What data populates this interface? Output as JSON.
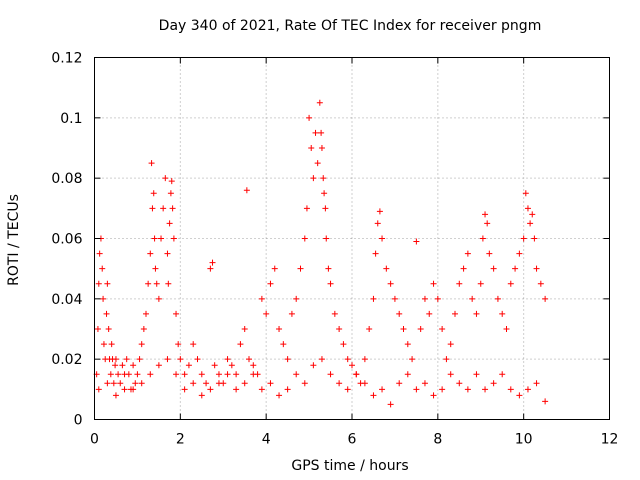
{
  "chart_data": {
    "type": "scatter",
    "title": "Day 340 of 2021, Rate Of TEC Index for receiver pngm",
    "xlabel": "GPS time / hours",
    "ylabel": "ROTI / TECUs",
    "xlim": [
      0,
      12
    ],
    "ylim": [
      0,
      0.12
    ],
    "xticks": [
      0,
      2,
      4,
      6,
      8,
      10,
      12
    ],
    "xtick_labels": [
      "0",
      "2",
      "4",
      "6",
      "8",
      "10",
      "12"
    ],
    "yticks": [
      0,
      0.02,
      0.04,
      0.06,
      0.08,
      0.1,
      0.12
    ],
    "ytick_labels": [
      "0",
      "0.02",
      "0.04",
      "0.06",
      "0.08",
      "0.1",
      "0.12"
    ],
    "grid": true,
    "marker": "plus",
    "marker_color": "#ff0000",
    "series": [
      {
        "name": "ROTI",
        "x": [
          0.05,
          0.08,
          0.1,
          0.12,
          0.15,
          0.18,
          0.2,
          0.22,
          0.25,
          0.28,
          0.3,
          0.33,
          0.35,
          0.38,
          0.4,
          0.42,
          0.45,
          0.48,
          0.5,
          0.55,
          0.6,
          0.65,
          0.7,
          0.75,
          0.8,
          0.85,
          0.9,
          0.95,
          1.0,
          1.05,
          1.1,
          1.15,
          1.2,
          1.25,
          1.3,
          1.33,
          1.35,
          1.38,
          1.4,
          1.42,
          1.45,
          1.5,
          1.55,
          1.6,
          1.65,
          1.7,
          1.72,
          1.75,
          1.78,
          1.8,
          1.82,
          1.85,
          1.9,
          1.95,
          2.0,
          2.1,
          2.2,
          2.3,
          2.4,
          2.5,
          2.6,
          2.7,
          2.75,
          2.8,
          2.9,
          3.0,
          3.1,
          3.2,
          3.3,
          3.4,
          3.5,
          3.55,
          3.6,
          3.7,
          3.8,
          3.9,
          4.0,
          4.1,
          4.2,
          4.3,
          4.4,
          4.5,
          4.6,
          4.7,
          4.8,
          4.9,
          4.95,
          5.0,
          5.05,
          5.1,
          5.15,
          5.2,
          5.25,
          5.28,
          5.3,
          5.33,
          5.35,
          5.38,
          5.4,
          5.45,
          5.5,
          5.6,
          5.7,
          5.8,
          5.9,
          6.0,
          6.1,
          6.2,
          6.3,
          6.4,
          6.5,
          6.55,
          6.6,
          6.65,
          6.7,
          6.8,
          6.9,
          7.0,
          7.1,
          7.2,
          7.3,
          7.4,
          7.5,
          7.6,
          7.7,
          7.8,
          7.9,
          8.0,
          8.1,
          8.2,
          8.3,
          8.4,
          8.5,
          8.6,
          8.7,
          8.8,
          8.9,
          9.0,
          9.05,
          9.1,
          9.15,
          9.2,
          9.3,
          9.4,
          9.5,
          9.6,
          9.7,
          9.8,
          9.9,
          10.0,
          10.05,
          10.1,
          10.15,
          10.2,
          10.25,
          10.3,
          10.4,
          10.5,
          0.1,
          0.3,
          0.5,
          0.7,
          0.9,
          1.1,
          1.3,
          1.5,
          1.7,
          1.9,
          2.1,
          2.3,
          2.5,
          2.7,
          2.9,
          3.1,
          3.3,
          3.5,
          3.7,
          3.9,
          4.1,
          4.3,
          4.5,
          4.7,
          4.9,
          5.1,
          5.3,
          5.5,
          5.7,
          5.9,
          6.1,
          6.3,
          6.5,
          6.7,
          6.9,
          7.1,
          7.3,
          7.5,
          7.7,
          7.9,
          8.1,
          8.3,
          8.5,
          8.7,
          8.9,
          9.1,
          9.3,
          9.5,
          9.7,
          9.9,
          10.1,
          10.3,
          10.5
        ],
        "y": [
          0.015,
          0.03,
          0.045,
          0.055,
          0.06,
          0.05,
          0.04,
          0.025,
          0.02,
          0.035,
          0.045,
          0.03,
          0.02,
          0.015,
          0.025,
          0.02,
          0.012,
          0.018,
          0.02,
          0.015,
          0.012,
          0.018,
          0.01,
          0.02,
          0.015,
          0.01,
          0.018,
          0.012,
          0.015,
          0.02,
          0.025,
          0.03,
          0.035,
          0.045,
          0.055,
          0.085,
          0.07,
          0.075,
          0.06,
          0.05,
          0.045,
          0.04,
          0.06,
          0.07,
          0.08,
          0.055,
          0.045,
          0.065,
          0.075,
          0.079,
          0.07,
          0.06,
          0.035,
          0.025,
          0.02,
          0.015,
          0.018,
          0.025,
          0.02,
          0.015,
          0.012,
          0.05,
          0.052,
          0.018,
          0.015,
          0.012,
          0.02,
          0.018,
          0.015,
          0.025,
          0.03,
          0.076,
          0.02,
          0.018,
          0.015,
          0.04,
          0.035,
          0.045,
          0.05,
          0.03,
          0.025,
          0.02,
          0.035,
          0.04,
          0.05,
          0.06,
          0.07,
          0.1,
          0.09,
          0.08,
          0.095,
          0.085,
          0.105,
          0.095,
          0.09,
          0.08,
          0.075,
          0.07,
          0.06,
          0.05,
          0.045,
          0.035,
          0.03,
          0.025,
          0.02,
          0.018,
          0.015,
          0.012,
          0.02,
          0.03,
          0.04,
          0.055,
          0.065,
          0.069,
          0.06,
          0.05,
          0.045,
          0.04,
          0.035,
          0.03,
          0.025,
          0.02,
          0.059,
          0.03,
          0.04,
          0.035,
          0.045,
          0.04,
          0.03,
          0.02,
          0.025,
          0.035,
          0.045,
          0.05,
          0.055,
          0.04,
          0.035,
          0.045,
          0.06,
          0.068,
          0.065,
          0.055,
          0.05,
          0.04,
          0.035,
          0.03,
          0.045,
          0.05,
          0.055,
          0.06,
          0.075,
          0.07,
          0.065,
          0.068,
          0.06,
          0.05,
          0.045,
          0.04,
          0.01,
          0.012,
          0.008,
          0.015,
          0.01,
          0.012,
          0.015,
          0.018,
          0.02,
          0.015,
          0.01,
          0.012,
          0.008,
          0.01,
          0.012,
          0.015,
          0.01,
          0.012,
          0.015,
          0.01,
          0.012,
          0.008,
          0.01,
          0.015,
          0.012,
          0.018,
          0.02,
          0.015,
          0.012,
          0.01,
          0.015,
          0.012,
          0.008,
          0.01,
          0.005,
          0.012,
          0.015,
          0.01,
          0.012,
          0.008,
          0.01,
          0.015,
          0.012,
          0.01,
          0.015,
          0.01,
          0.012,
          0.015,
          0.01,
          0.008,
          0.01,
          0.012,
          0.006
        ]
      }
    ]
  }
}
